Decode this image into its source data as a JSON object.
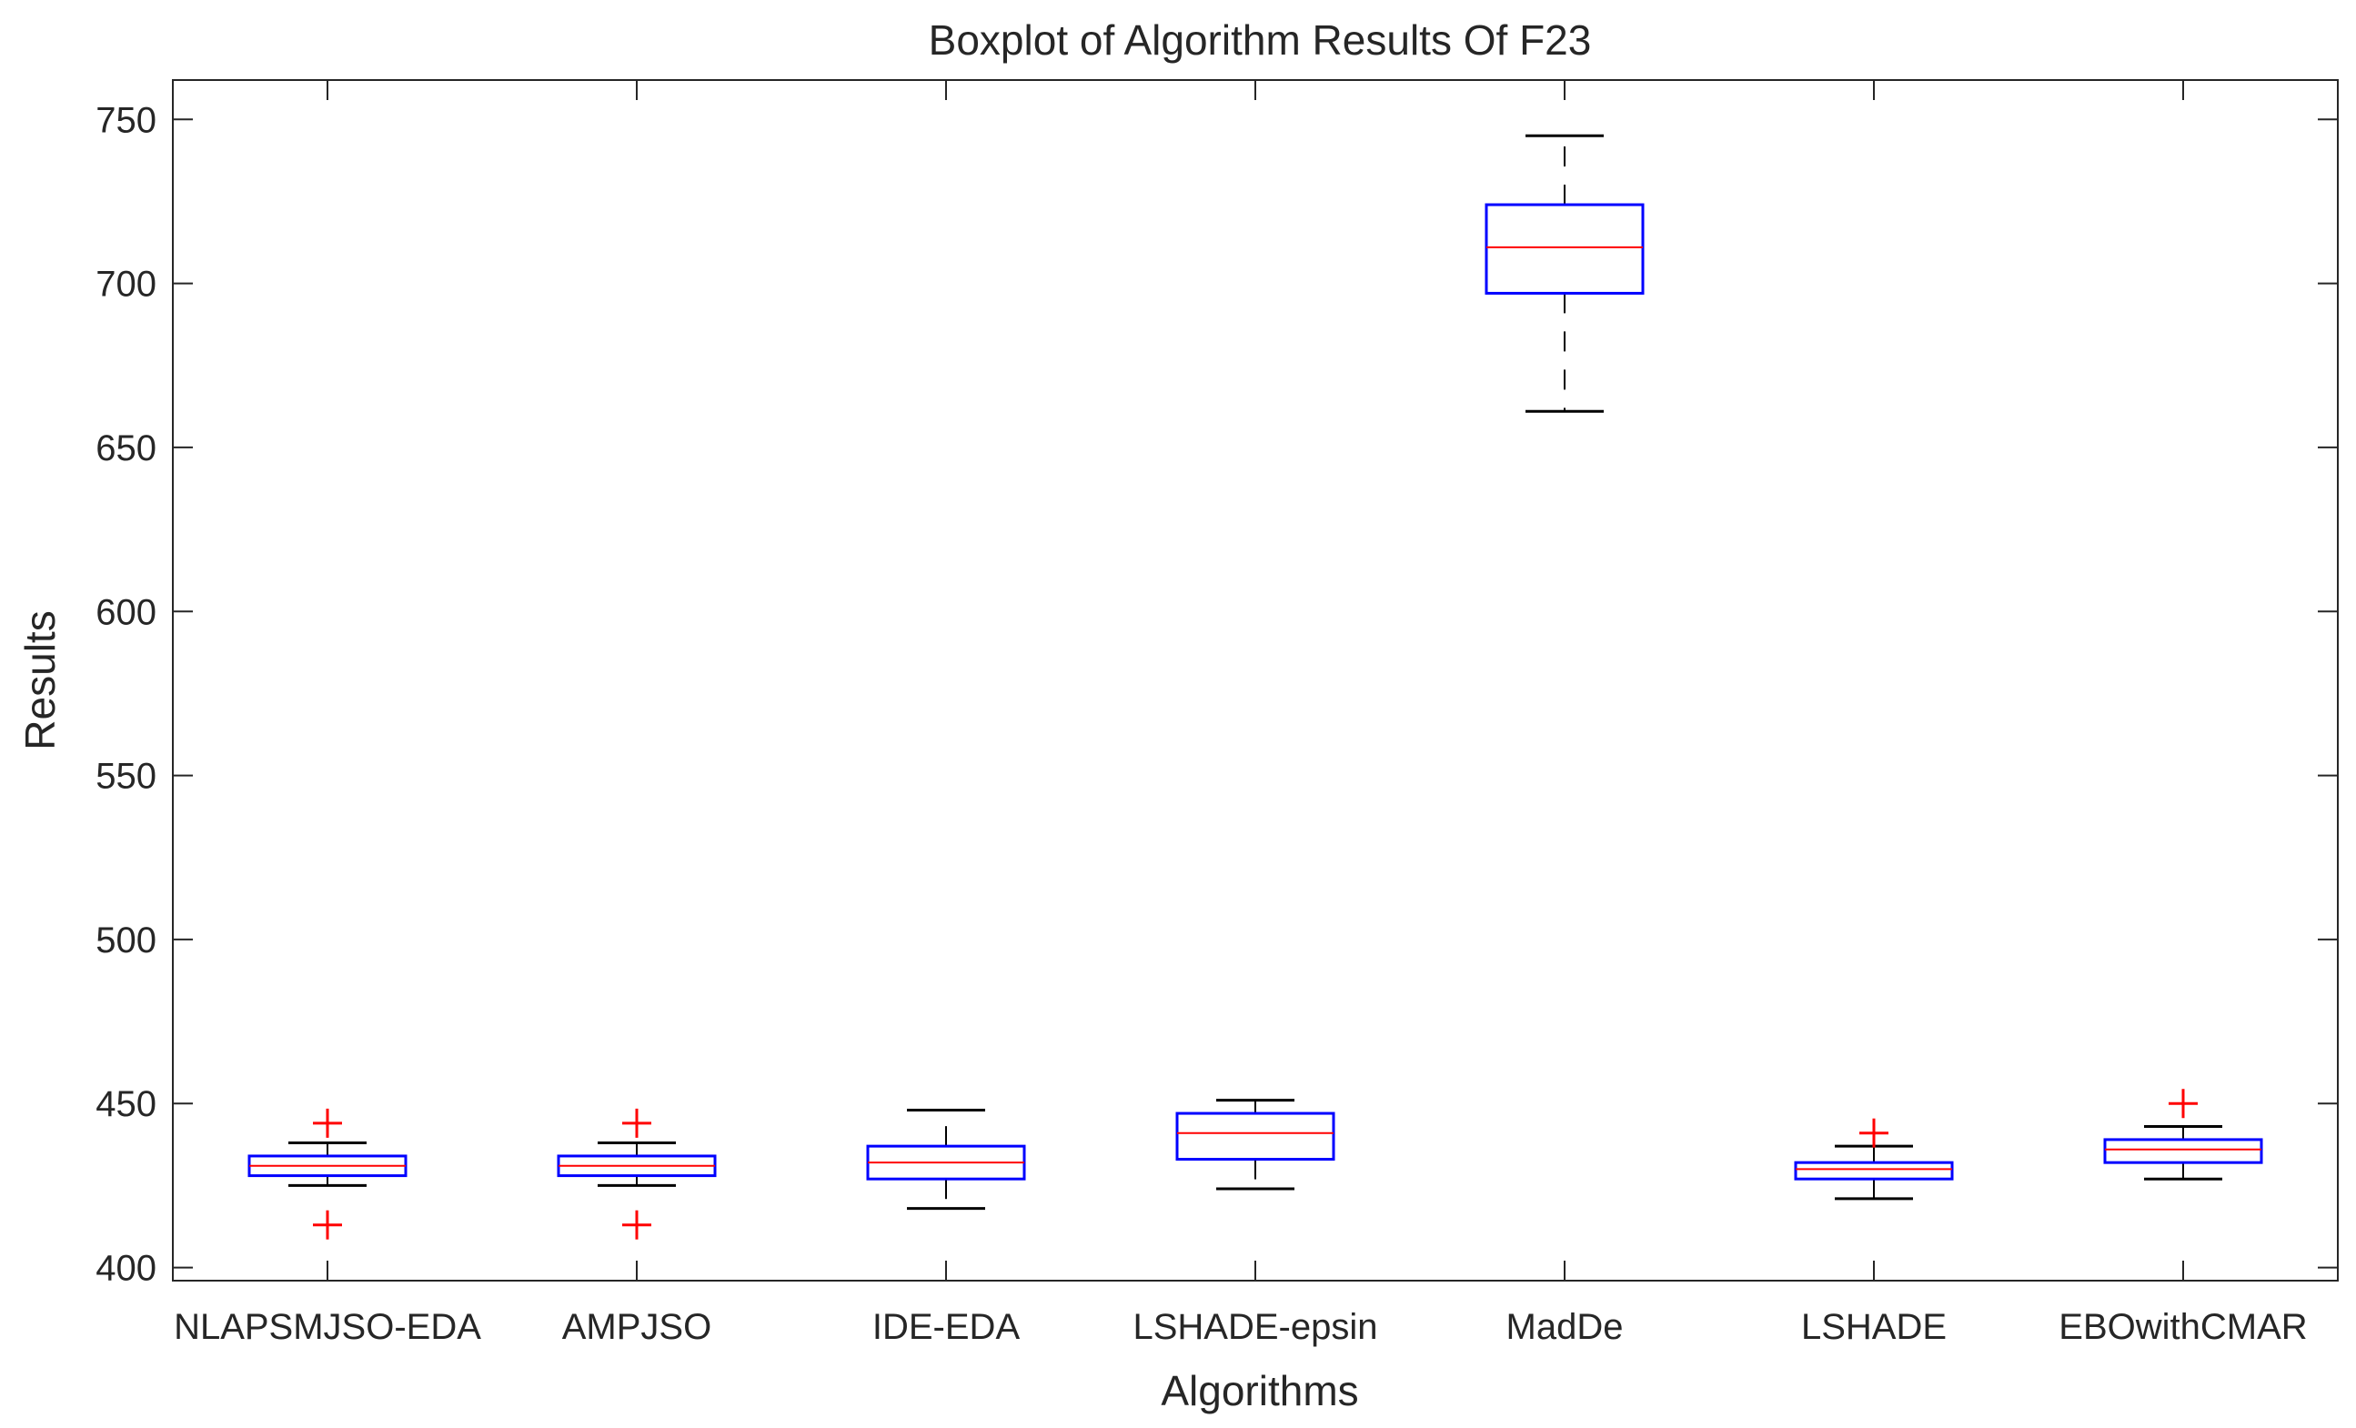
{
  "chart_data": {
    "type": "boxplot",
    "title": "Boxplot of Algorithm Results Of F23",
    "xlabel": "Algorithms",
    "ylabel": "Results",
    "ylim": [
      396,
      762
    ],
    "yticks": [
      400,
      450,
      500,
      550,
      600,
      650,
      700,
      750
    ],
    "grid": false,
    "colors": {
      "box": "#0000ff",
      "median": "#ff0000",
      "whisker": "#000000",
      "outlier": "#ff0000",
      "axis": "#262626"
    },
    "categories": [
      "NLAPSMJSO-EDA",
      "AMPJSO",
      "IDE-EDA",
      "LSHADE-epsin",
      "MadDe",
      "LSHADE",
      "EBOwithCMAR"
    ],
    "boxes": [
      {
        "name": "NLAPSMJSO-EDA",
        "whisker_low": 425,
        "q1": 428,
        "median": 431,
        "q3": 434,
        "whisker_high": 438,
        "outliers": [
          444,
          413
        ]
      },
      {
        "name": "AMPJSO",
        "whisker_low": 425,
        "q1": 428,
        "median": 431,
        "q3": 434,
        "whisker_high": 438,
        "outliers": [
          444,
          413
        ]
      },
      {
        "name": "IDE-EDA",
        "whisker_low": 418,
        "q1": 427,
        "median": 432,
        "q3": 437,
        "whisker_high": 448,
        "outliers": []
      },
      {
        "name": "LSHADE-epsin",
        "whisker_low": 424,
        "q1": 433,
        "median": 441,
        "q3": 447,
        "whisker_high": 451,
        "outliers": []
      },
      {
        "name": "MadDe",
        "whisker_low": 661,
        "q1": 697,
        "median": 711,
        "q3": 724,
        "whisker_high": 745,
        "outliers": []
      },
      {
        "name": "LSHADE",
        "whisker_low": 421,
        "q1": 427,
        "median": 430,
        "q3": 432,
        "whisker_high": 437,
        "outliers": [
          441
        ]
      },
      {
        "name": "EBOwithCMAR",
        "whisker_low": 427,
        "q1": 432,
        "median": 436,
        "q3": 439,
        "whisker_high": 443,
        "outliers": [
          450
        ]
      }
    ]
  }
}
